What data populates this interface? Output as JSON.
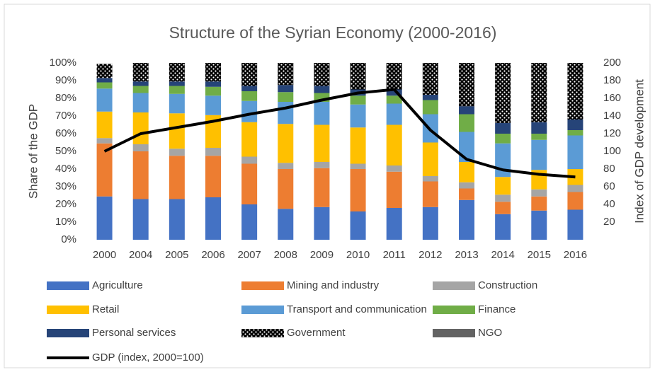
{
  "chart_data": {
    "type": "bar",
    "stacked": true,
    "title": "Structure of the Syrian Economy (2000-2016)",
    "ylabel": "Share of the GDP",
    "y2label": "Index of GDP development",
    "categories": [
      "2000",
      "2004",
      "2005",
      "2006",
      "2007",
      "2008",
      "2009",
      "2010",
      "2011",
      "2012",
      "2013",
      "2014",
      "2015",
      "2016"
    ],
    "ylim": [
      0,
      100
    ],
    "yticks": [
      {
        "value": 0,
        "label": "0%"
      },
      {
        "value": 10,
        "label": "10%"
      },
      {
        "value": 20,
        "label": "20%"
      },
      {
        "value": 30,
        "label": "30%"
      },
      {
        "value": 40,
        "label": "40%"
      },
      {
        "value": 50,
        "label": "50%"
      },
      {
        "value": 60,
        "label": "60%"
      },
      {
        "value": 70,
        "label": "70%"
      },
      {
        "value": 80,
        "label": "80%"
      },
      {
        "value": 90,
        "label": "90%"
      },
      {
        "value": 100,
        "label": "100%"
      }
    ],
    "y2lim": [
      0,
      200
    ],
    "y2ticks": [
      20,
      40,
      60,
      80,
      100,
      120,
      140,
      160,
      180,
      200
    ],
    "grid": false,
    "legend": "bottom",
    "series": [
      {
        "name": "Agriculture",
        "color": "#4472c4",
        "values": [
          24.5,
          23,
          23,
          24,
          20,
          17.5,
          18.5,
          16,
          18,
          18.5,
          22.5,
          14.5,
          16.5,
          17
        ]
      },
      {
        "name": "Mining and industry",
        "color": "#ed7d31",
        "values": [
          30,
          27,
          24.5,
          23.5,
          23,
          22.5,
          22,
          24,
          20.5,
          14.5,
          6.5,
          7,
          8,
          10
        ]
      },
      {
        "name": "Construction",
        "color": "#a5a5a5",
        "values": [
          3,
          4,
          4,
          4.5,
          4,
          3.5,
          3.5,
          3,
          3.5,
          3,
          3.5,
          4,
          4,
          4
        ]
      },
      {
        "name": "Retail",
        "color": "#ffc000",
        "values": [
          15,
          18,
          20,
          18.5,
          19.5,
          22,
          21,
          20.5,
          23,
          19,
          11.5,
          10,
          11,
          9
        ]
      },
      {
        "name": "Transport and communication",
        "color": "#5b9bd5",
        "values": [
          13,
          11,
          11,
          11,
          12,
          12.5,
          13,
          13,
          12,
          16,
          17,
          19,
          17,
          19
        ]
      },
      {
        "name": "Finance",
        "color": "#70ad47",
        "values": [
          3.5,
          4,
          4.5,
          5,
          5.5,
          5.5,
          5,
          5,
          4.5,
          8,
          10,
          5.5,
          3.5,
          3
        ]
      },
      {
        "name": "Personal services",
        "color": "#264478",
        "values": [
          2.5,
          2.5,
          2.5,
          3,
          3,
          4,
          4,
          3.5,
          3.5,
          3,
          4.5,
          6,
          6.5,
          6
        ]
      },
      {
        "name": "Government",
        "color": "#000000",
        "pattern": "dots",
        "values": [
          8,
          10.5,
          10.5,
          10.5,
          13,
          12.5,
          13,
          15,
          15,
          18,
          24.5,
          34,
          33.5,
          32
        ]
      },
      {
        "name": "NGO",
        "color": "#636363",
        "values": [
          0,
          0,
          0,
          0,
          0,
          0,
          0,
          0,
          0,
          0,
          0,
          0,
          0,
          0
        ]
      },
      {
        "name": "GDP (index, 2000=100)",
        "color": "#000000",
        "type": "line",
        "axis": "y2",
        "values": [
          100,
          120,
          127,
          134,
          142,
          149,
          158,
          166,
          170,
          124,
          91,
          79,
          74,
          71
        ]
      }
    ]
  }
}
